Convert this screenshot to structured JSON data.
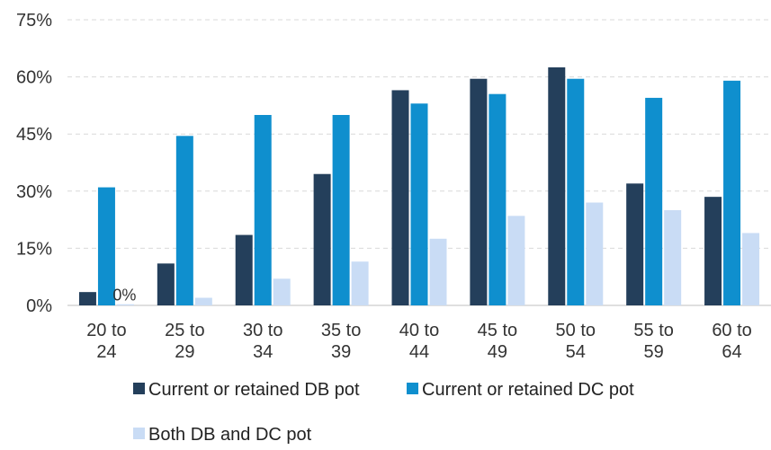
{
  "chart_data": {
    "type": "bar",
    "title": "",
    "xlabel": "",
    "ylabel": "",
    "categories": [
      [
        "20 to",
        "24"
      ],
      [
        "25 to",
        "29"
      ],
      [
        "30 to",
        "34"
      ],
      [
        "35 to",
        "39"
      ],
      [
        "40 to",
        "44"
      ],
      [
        "45 to",
        "49"
      ],
      [
        "50 to",
        "54"
      ],
      [
        "55 to",
        "59"
      ],
      [
        "60 to",
        "64"
      ]
    ],
    "series": [
      {
        "name": "Current or retained DB pot",
        "color": "#243f5b",
        "values": [
          3.5,
          11,
          18.5,
          34.5,
          56.5,
          59.5,
          62.5,
          32,
          28.5
        ]
      },
      {
        "name": "Current or retained DC pot",
        "color": "#0f8fce",
        "values": [
          31,
          44.5,
          50,
          50,
          53,
          55.5,
          59.5,
          54.5,
          59
        ]
      },
      {
        "name": "Both DB and DC pot",
        "color": "#c9dcf5",
        "values": [
          0.3,
          2,
          7,
          11.5,
          17.5,
          23.5,
          27,
          25,
          19
        ]
      }
    ],
    "data_labels": [
      {
        "series": 2,
        "index": 0,
        "text": "0%"
      }
    ],
    "ylim": [
      0,
      75
    ],
    "yticks": [
      0,
      15,
      30,
      45,
      60,
      75
    ],
    "ytick_labels": [
      "0%",
      "15%",
      "30%",
      "45%",
      "60%",
      "75%"
    ],
    "grid": true,
    "legend_position": "bottom"
  }
}
